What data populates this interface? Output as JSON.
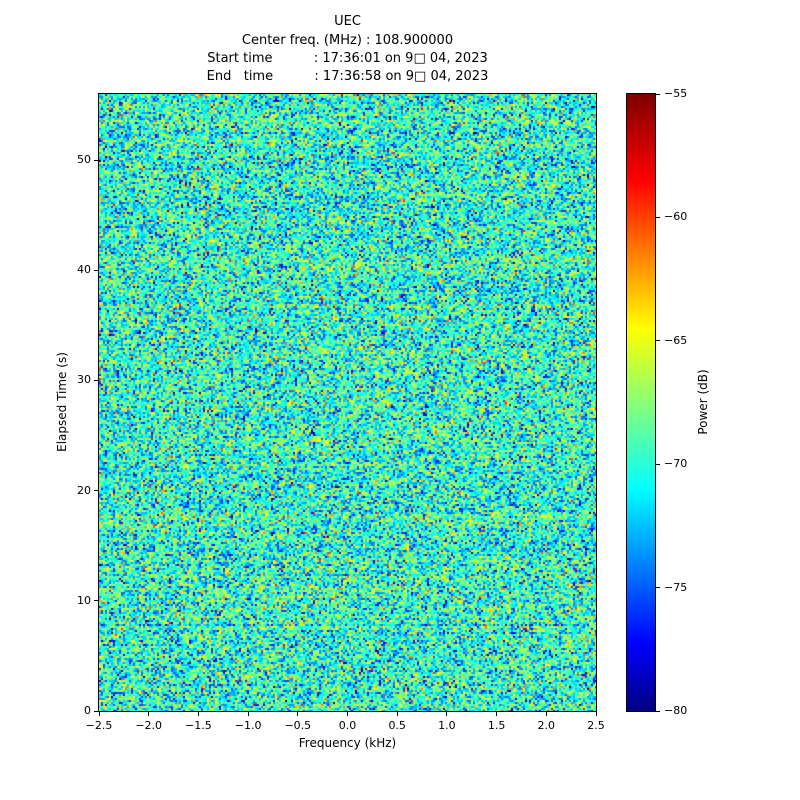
{
  "header": {
    "title": "UEC",
    "lines": [
      "Center freq. (MHz) : 108.900000",
      "Start time          : 17:36:01 on 9□ 04, 2023",
      "End   time          : 17:36:58 on 9□ 04, 2023"
    ]
  },
  "chart_data": {
    "type": "heatmap",
    "title": "UEC",
    "center_frequency_mhz": "108.900000",
    "start_time": "17:36:01 on 9□ 04, 2023",
    "end_time": "17:36:58 on 9□ 04, 2023",
    "xlabel": "Frequency (kHz)",
    "ylabel": "Elapsed Time (s)",
    "colorbar_label": "Power (dB)",
    "xlim": [
      -2.5,
      2.5
    ],
    "ylim": [
      0,
      56
    ],
    "clim": [
      -80,
      -55
    ],
    "x_ticks": [
      -2.5,
      -2.0,
      -1.5,
      -1.0,
      -0.5,
      0.0,
      0.5,
      1.0,
      1.5,
      2.0,
      2.5
    ],
    "y_ticks": [
      0,
      10,
      20,
      30,
      40,
      50
    ],
    "colorbar_ticks": [
      -55,
      -60,
      -65,
      -70,
      -75,
      -80
    ],
    "colormap": "jet",
    "colormap_stops": [
      {
        "pos": 0.0,
        "color": "#00007f"
      },
      {
        "pos": 0.11,
        "color": "#0000ff"
      },
      {
        "pos": 0.36,
        "color": "#00ffff"
      },
      {
        "pos": 0.62,
        "color": "#ffff00"
      },
      {
        "pos": 0.86,
        "color": "#ff0000"
      },
      {
        "pos": 1.0,
        "color": "#7f0000"
      }
    ],
    "noise": {
      "mean_db": -70,
      "std_db": 3.5,
      "row_bias_std_db": 0.5,
      "seed": 987654321
    },
    "description": "Broadband random-noise spectrogram speckle; no distinct narrowband signal visible"
  }
}
